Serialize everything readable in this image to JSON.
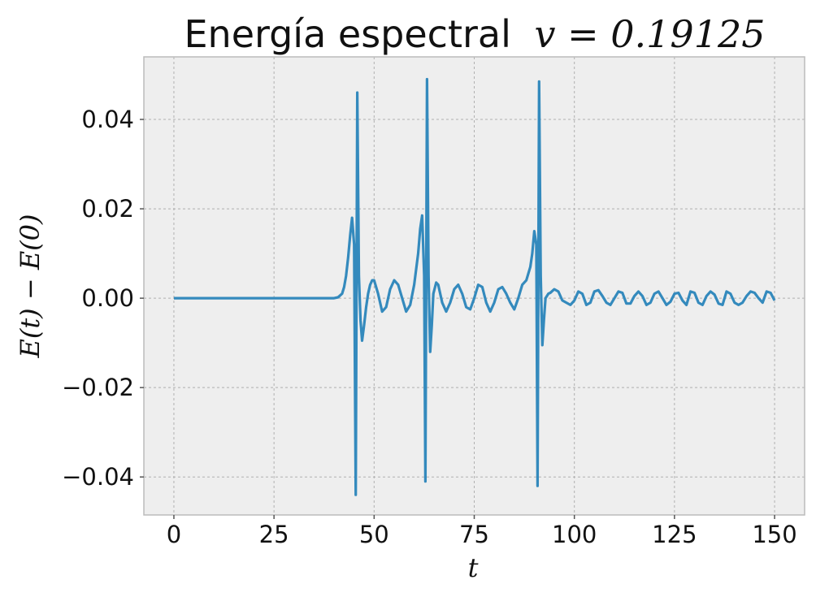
{
  "chart_data": {
    "type": "line",
    "title": "Energía espectral",
    "title_math": "v = 0.19125",
    "xlabel": "t",
    "ylabel": "E(t) − E(0)",
    "xlim": [
      -7.5,
      157.5
    ],
    "ylim": [
      -0.0485,
      0.054
    ],
    "xticks": [
      0,
      25,
      50,
      75,
      100,
      125,
      150
    ],
    "xtick_labels": [
      "0",
      "25",
      "50",
      "75",
      "100",
      "125",
      "150"
    ],
    "yticks": [
      -0.04,
      -0.02,
      0.0,
      0.02,
      0.04
    ],
    "ytick_labels": [
      "−0.04",
      "−0.02",
      "0.00",
      "0.02",
      "0.04"
    ],
    "grid": true,
    "legend": "none",
    "background": "#eeeeee",
    "series": [
      {
        "color": "#348abd",
        "x": [
          0,
          10,
          20,
          30,
          40,
          41,
          42,
          42.5,
          43,
          43.5,
          44,
          44.5,
          45,
          45.4,
          45.8,
          46.2,
          46.6,
          47,
          47.5,
          48,
          48.5,
          49,
          49.5,
          50,
          51,
          52,
          53,
          54,
          55,
          56,
          57,
          58,
          59,
          60,
          61,
          61.5,
          62,
          62.5,
          62.8,
          63.2,
          63.6,
          64,
          64.4,
          64.8,
          65.5,
          66,
          67,
          68,
          69,
          70,
          71,
          72,
          73,
          74,
          75,
          76,
          77,
          78,
          79,
          80,
          81,
          82,
          83,
          84,
          85,
          86,
          87,
          88,
          89,
          89.5,
          90,
          90.5,
          90.8,
          91.2,
          91.6,
          92,
          92.4,
          92.8,
          93.5,
          94,
          95,
          96,
          97,
          98,
          99,
          100,
          101,
          102,
          103,
          104,
          105,
          106,
          107,
          108,
          109,
          110,
          111,
          112,
          113,
          114,
          115,
          116,
          117,
          118,
          119,
          120,
          121,
          122,
          123,
          124,
          125,
          126,
          127,
          128,
          129,
          130,
          131,
          132,
          133,
          134,
          135,
          136,
          137,
          138,
          139,
          140,
          141,
          142,
          143,
          144,
          145,
          146,
          147,
          148,
          149,
          150
        ],
        "y": [
          0,
          0,
          0,
          0,
          0,
          0.0002,
          0.001,
          0.0025,
          0.005,
          0.009,
          0.014,
          0.018,
          0.012,
          -0.044,
          0.046,
          0.005,
          -0.005,
          -0.0095,
          -0.006,
          -0.002,
          0.001,
          0.003,
          0.004,
          0.004,
          0.001,
          -0.003,
          -0.002,
          0.002,
          0.004,
          0.003,
          0,
          -0.003,
          -0.0015,
          0.003,
          0.01,
          0.0155,
          0.0185,
          0.005,
          -0.041,
          0.049,
          0.005,
          -0.012,
          -0.006,
          0.001,
          0.0035,
          0.003,
          -0.001,
          -0.003,
          -0.001,
          0.002,
          0.003,
          0.001,
          -0.002,
          -0.0025,
          0,
          0.003,
          0.0025,
          -0.001,
          -0.003,
          -0.001,
          0.002,
          0.0025,
          0.001,
          -0.001,
          -0.0025,
          0.0,
          0.003,
          0.004,
          0.007,
          0.01,
          0.015,
          0.012,
          -0.042,
          0.0485,
          0.005,
          -0.0105,
          -0.005,
          0,
          0.001,
          0.0012,
          0.002,
          0.0015,
          -0.0005,
          -0.001,
          -0.0015,
          -0.0005,
          0.0015,
          0.001,
          -0.0015,
          -0.001,
          0.0015,
          0.0018,
          0.0005,
          -0.001,
          -0.0015,
          0,
          0.0015,
          0.0012,
          -0.0012,
          -0.0012,
          0.0005,
          0.0015,
          0.0005,
          -0.0015,
          -0.001,
          0.001,
          0.0015,
          0,
          -0.0015,
          -0.0008,
          0.001,
          0.0012,
          -0.0005,
          -0.0015,
          0.0015,
          0.0012,
          -0.001,
          -0.0015,
          0.0005,
          0.0015,
          0.0008,
          -0.0012,
          -0.0015,
          0.0015,
          0.001,
          -0.001,
          -0.0015,
          -0.001,
          0.0005,
          0.0015,
          0.0012,
          0,
          -0.001,
          0.0015,
          0.0012,
          -0.0005
        ]
      }
    ]
  }
}
